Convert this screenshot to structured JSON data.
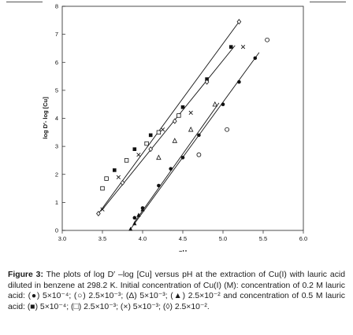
{
  "caption": {
    "label": "Figure 3:",
    "text": "The plots of log D′ –log [Cu] versus pH at the extraction of Cu(I) with lauric acid diluted in benzene at 298.2 K. Initial concentration of Cu(I) (M): concentration of 0.2 M lauric acid: (●) 5×10⁻⁴; (○) 2.5×10⁻³; (Δ) 5×10⁻³; (▲) 2.5×10⁻² and concentration of 0.5 M lauric acid: (■) 5×10⁻⁴; (□) 2.5×10⁻³; (×) 5×10⁻³; (◊) 2.5×10⁻²."
  },
  "chart_data": {
    "type": "scatter",
    "title": "",
    "xlabel": "pH",
    "ylabel": "log D′- log [Cu]",
    "xlim": [
      3.0,
      6.0
    ],
    "ylim": [
      0,
      8
    ],
    "x_ticks": [
      "3.0",
      "3.5",
      "4.0",
      "4.5",
      "5.0",
      "5.5",
      "6.0"
    ],
    "y_ticks": [
      "0",
      "1",
      "2",
      "3",
      "4",
      "5",
      "6",
      "7",
      "8"
    ],
    "grid": false,
    "legend": "none",
    "series": [
      {
        "marker": "filled-circle",
        "x": [
          3.9,
          4.0,
          4.2,
          4.35,
          4.5,
          4.7,
          5.0,
          5.2,
          5.4
        ],
        "y": [
          0.45,
          0.8,
          1.6,
          2.2,
          2.6,
          3.4,
          4.5,
          5.3,
          6.15
        ]
      },
      {
        "marker": "open-circle",
        "x": [
          4.7,
          5.05,
          5.55
        ],
        "y": [
          2.7,
          3.6,
          6.8
        ]
      },
      {
        "marker": "open-triangle",
        "x": [
          4.2,
          4.4,
          4.6,
          4.9
        ],
        "y": [
          2.6,
          3.2,
          3.6,
          4.5
        ]
      },
      {
        "marker": "filled-triangle",
        "x": [
          3.85,
          3.9,
          3.95,
          4.0
        ],
        "y": [
          0.05,
          0.25,
          0.55,
          0.75
        ]
      },
      {
        "marker": "filled-square",
        "x": [
          3.65,
          3.9,
          4.1,
          4.5,
          4.8,
          5.1
        ],
        "y": [
          2.15,
          2.9,
          3.4,
          4.4,
          5.4,
          6.55
        ]
      },
      {
        "marker": "open-square",
        "x": [
          3.5,
          3.55,
          3.8,
          4.05,
          4.2,
          4.45
        ],
        "y": [
          1.5,
          1.85,
          2.5,
          3.1,
          3.5,
          4.1
        ]
      },
      {
        "marker": "cross",
        "x": [
          3.5,
          3.7,
          3.95,
          4.25,
          4.6,
          5.25
        ],
        "y": [
          0.75,
          1.9,
          2.7,
          3.6,
          4.2,
          6.55
        ]
      },
      {
        "marker": "open-diamond",
        "x": [
          3.45,
          3.75,
          4.1,
          4.4,
          4.8,
          5.2
        ],
        "y": [
          0.6,
          1.7,
          2.9,
          3.9,
          5.3,
          7.45
        ]
      }
    ],
    "fit_lines": [
      {
        "x": [
          3.45,
          5.2
        ],
        "y": [
          0.6,
          7.45
        ]
      },
      {
        "x": [
          3.5,
          5.15
        ],
        "y": [
          0.75,
          6.6
        ]
      },
      {
        "x": [
          3.85,
          5.45
        ],
        "y": [
          0.05,
          6.35
        ]
      },
      {
        "x": [
          3.9,
          4.95
        ],
        "y": [
          0.3,
          4.55
        ]
      }
    ]
  }
}
